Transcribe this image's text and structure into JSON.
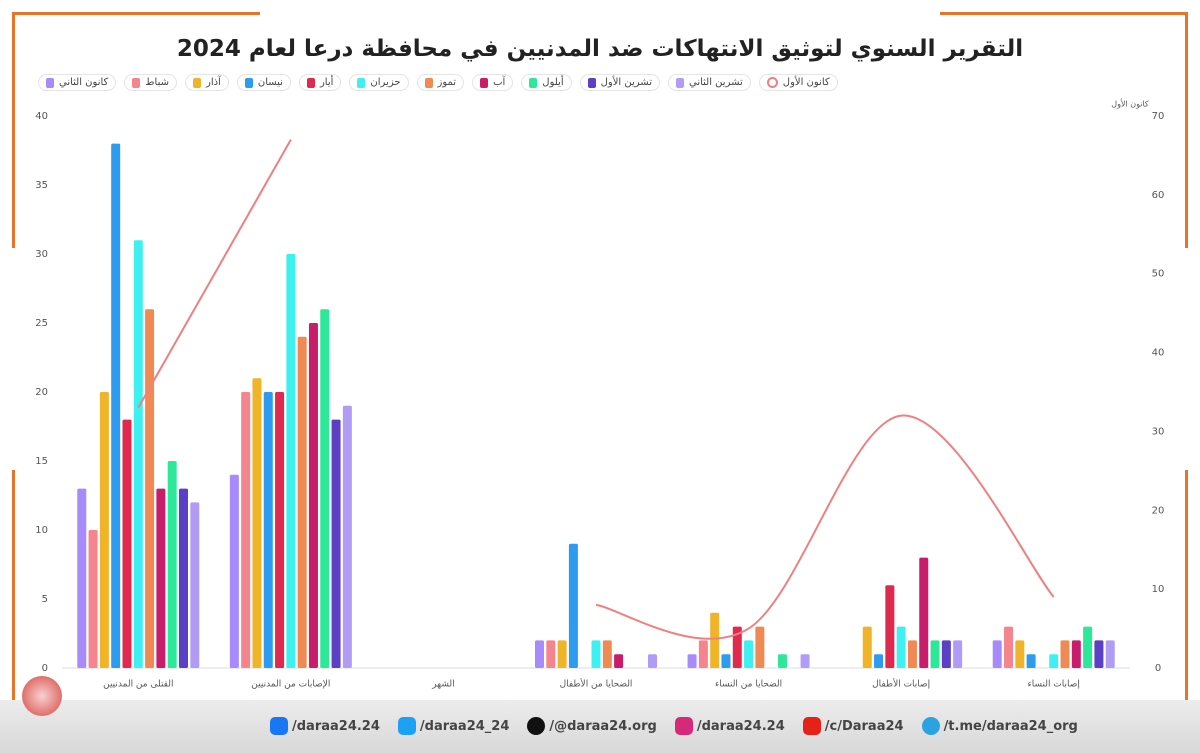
{
  "chart_data": {
    "type": "bar",
    "title": "التقرير السنوي لتوثيق الانتهاكات ضد المدنيين في محافظة درعا لعام 2024",
    "y2label": "كانون الأول",
    "categories": [
      "القتلى من المدنيين",
      "الإصابات من المدنيين",
      "الشهر",
      "الضحايا من الأطفال",
      "الضحايا من النساء",
      "إصابات الأطفال",
      "إصابات النساء"
    ],
    "ylim": [
      0,
      40
    ],
    "yticks": [
      0,
      5,
      10,
      15,
      20,
      25,
      30,
      35,
      40
    ],
    "y2lim": [
      0,
      70
    ],
    "y2ticks": [
      0,
      10,
      20,
      30,
      40,
      50,
      60,
      70
    ],
    "grid": false,
    "series": [
      {
        "name": "كانون الثاني",
        "color": "#a78bfa",
        "values": [
          13,
          14,
          null,
          2,
          1,
          0,
          2
        ]
      },
      {
        "name": "شباط",
        "color": "#f4858e",
        "values": [
          10,
          20,
          null,
          2,
          2,
          0,
          3
        ]
      },
      {
        "name": "آذار",
        "color": "#f0b429",
        "values": [
          20,
          21,
          null,
          2,
          4,
          3,
          2
        ]
      },
      {
        "name": "نيسان",
        "color": "#2d9cf0",
        "values": [
          38,
          20,
          null,
          9,
          1,
          1,
          1
        ]
      },
      {
        "name": "أيار",
        "color": "#e0294f",
        "values": [
          18,
          20,
          null,
          0,
          3,
          6,
          0
        ]
      },
      {
        "name": "حزيران",
        "color": "#3ff0f0",
        "values": [
          31,
          30,
          null,
          2,
          2,
          3,
          1
        ]
      },
      {
        "name": "تموز",
        "color": "#f08a54",
        "values": [
          26,
          24,
          null,
          2,
          3,
          2,
          2
        ]
      },
      {
        "name": "آب",
        "color": "#c81d6b",
        "values": [
          13,
          25,
          null,
          1,
          0,
          8,
          2
        ]
      },
      {
        "name": "أيلول",
        "color": "#2ee89a",
        "values": [
          15,
          26,
          null,
          0,
          1,
          2,
          3
        ]
      },
      {
        "name": "تشرين الأول",
        "color": "#5b3fc4",
        "values": [
          13,
          18,
          null,
          0,
          0,
          2,
          2
        ]
      },
      {
        "name": "تشرين الثاني",
        "color": "#b19cf5",
        "values": [
          12,
          19,
          null,
          1,
          1,
          2,
          2
        ]
      },
      {
        "name": "كانون الأول",
        "color": "#f08080",
        "type": "line",
        "axis": "y2",
        "values": [
          33,
          67,
          null,
          8,
          5,
          32,
          9
        ]
      }
    ]
  },
  "footer": {
    "links": [
      "/daraa24.24",
      "/daraa24_24",
      "/@daraa24.org",
      "/daraa24.24",
      "/c/Daraa24",
      "/t.me/daraa24_org"
    ]
  }
}
